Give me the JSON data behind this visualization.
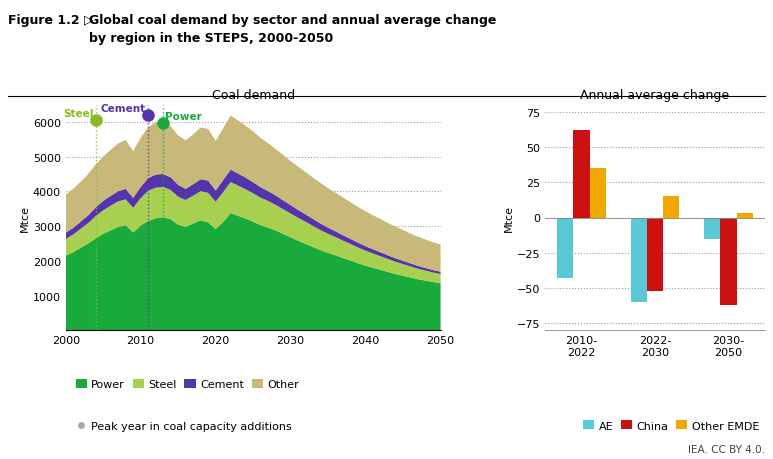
{
  "title_prefix": "Figure 1.2 ▷",
  "title_main": "Global coal demand by sector and annual average change\nby region in the STEPS, 2000-2050",
  "left_title": "Coal demand",
  "right_title": "Annual average change",
  "ylabel_left": "Mtce",
  "ylabel_right": "Mtce",
  "credit": "IEA. CC BY 4.0.",
  "years": [
    2000,
    2001,
    2002,
    2003,
    2004,
    2005,
    2006,
    2007,
    2008,
    2009,
    2010,
    2011,
    2012,
    2013,
    2014,
    2015,
    2016,
    2017,
    2018,
    2019,
    2020,
    2021,
    2022,
    2023,
    2024,
    2025,
    2026,
    2027,
    2028,
    2029,
    2030,
    2031,
    2032,
    2033,
    2034,
    2035,
    2036,
    2037,
    2038,
    2039,
    2040,
    2041,
    2042,
    2043,
    2044,
    2045,
    2046,
    2047,
    2048,
    2049,
    2050
  ],
  "power": [
    2150,
    2250,
    2380,
    2500,
    2650,
    2780,
    2880,
    2980,
    3030,
    2820,
    3020,
    3150,
    3230,
    3260,
    3200,
    3050,
    2980,
    3080,
    3170,
    3110,
    2920,
    3120,
    3380,
    3300,
    3220,
    3130,
    3030,
    2960,
    2880,
    2780,
    2680,
    2580,
    2490,
    2400,
    2310,
    2230,
    2160,
    2080,
    2010,
    1930,
    1860,
    1800,
    1740,
    1680,
    1620,
    1570,
    1520,
    1470,
    1430,
    1390,
    1360
  ],
  "steel": [
    480,
    510,
    545,
    590,
    640,
    680,
    710,
    735,
    745,
    710,
    790,
    870,
    880,
    870,
    845,
    800,
    775,
    800,
    840,
    850,
    785,
    860,
    890,
    870,
    845,
    820,
    790,
    765,
    735,
    710,
    685,
    660,
    635,
    605,
    575,
    550,
    525,
    500,
    475,
    455,
    433,
    412,
    392,
    372,
    354,
    336,
    319,
    303,
    288,
    274,
    261
  ],
  "cement": [
    180,
    190,
    205,
    225,
    250,
    270,
    285,
    295,
    300,
    285,
    320,
    365,
    380,
    375,
    365,
    340,
    320,
    330,
    345,
    355,
    325,
    350,
    360,
    350,
    335,
    320,
    305,
    288,
    272,
    257,
    242,
    228,
    215,
    202,
    190,
    178,
    167,
    157,
    147,
    138,
    129,
    121,
    113,
    106,
    99,
    93,
    87,
    81,
    76,
    71,
    66
  ],
  "other": [
    1100,
    1130,
    1150,
    1190,
    1240,
    1280,
    1330,
    1380,
    1410,
    1350,
    1420,
    1470,
    1510,
    1490,
    1470,
    1430,
    1400,
    1440,
    1490,
    1490,
    1430,
    1490,
    1560,
    1530,
    1500,
    1460,
    1420,
    1380,
    1340,
    1310,
    1270,
    1250,
    1220,
    1190,
    1170,
    1140,
    1110,
    1090,
    1060,
    1030,
    1010,
    980,
    960,
    930,
    910,
    890,
    860,
    840,
    820,
    800,
    780
  ],
  "power_color": "#1aaa3c",
  "steel_color": "#a8d050",
  "cement_color": "#5533aa",
  "other_color": "#c8b87a",
  "peak_steel_year": 2004,
  "peak_steel_value": 6060,
  "peak_steel_label": "Steel",
  "peak_steel_color": "#88bb22",
  "peak_cement_year": 2011,
  "peak_cement_value": 6200,
  "peak_cement_label": "Cement",
  "peak_cement_color": "#5533aa",
  "peak_power_year": 2013,
  "peak_power_value": 5980,
  "peak_power_label": "Power",
  "peak_power_color": "#1aaa3c",
  "bar_groups": [
    "2010-\n2022",
    "2022-\n2030",
    "2030-\n2050"
  ],
  "bar_ae": [
    -43,
    -60,
    -15
  ],
  "bar_china": [
    62,
    -52,
    -62
  ],
  "bar_other_emde": [
    35,
    15,
    3
  ],
  "bar_ae_color": "#5bc8d8",
  "bar_china_color": "#cc1111",
  "bar_other_emde_color": "#f0a800",
  "left_ylim": [
    0,
    6500
  ],
  "left_yticks": [
    1000,
    2000,
    3000,
    4000,
    5000,
    6000
  ],
  "right_ylim": [
    -80,
    80
  ],
  "right_yticks": [
    -75,
    -50,
    -25,
    0,
    25,
    50,
    75
  ]
}
